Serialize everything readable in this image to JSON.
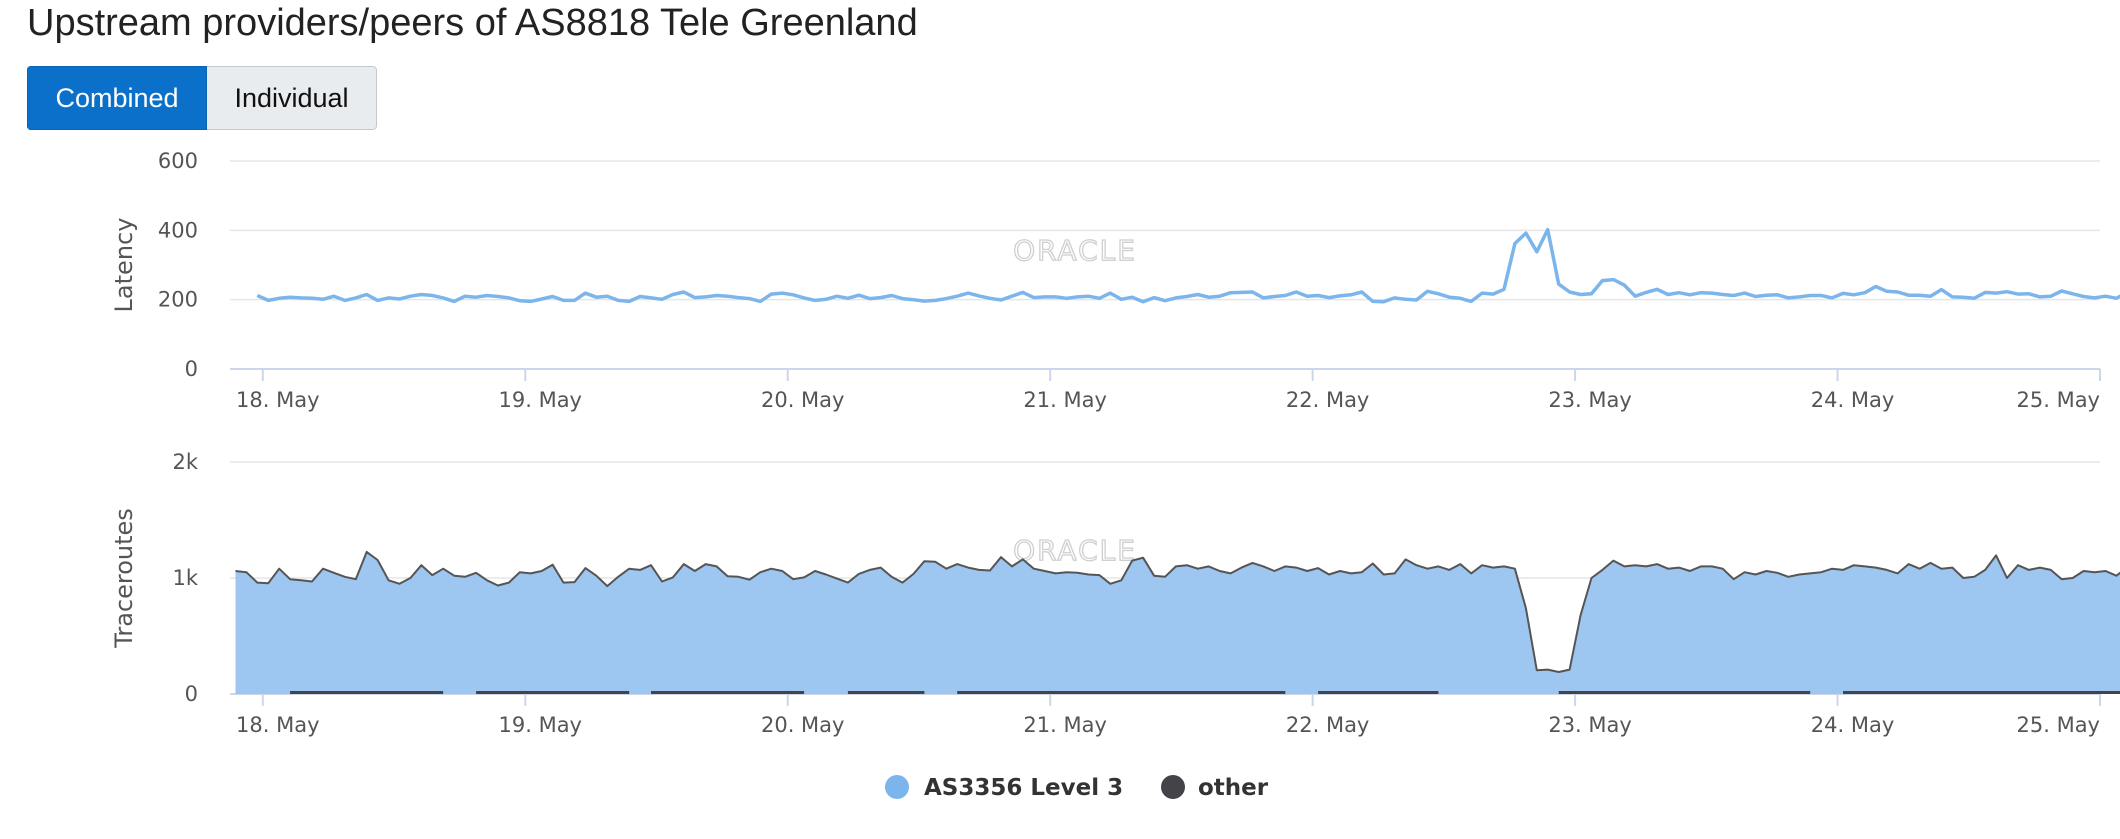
{
  "page": {
    "title": "Upstream providers/peers of AS8818 Tele Greenland"
  },
  "toggle": {
    "combined_label": "Combined",
    "individual_label": "Individual",
    "selected": "Combined"
  },
  "watermark": "ORACLE",
  "colors": {
    "provider": "#7cb5ec",
    "provider_area": "#9dc6f0",
    "other": "#434348",
    "grid": "#e6e6e6",
    "axis": "#ccd6eb"
  },
  "legend": [
    {
      "name": "AS3356 Level 3",
      "color": "#7cb5ec"
    },
    {
      "name": "other",
      "color": "#434348"
    }
  ],
  "chart_data": [
    {
      "type": "line",
      "ylabel": "Latency",
      "ylim": [
        0,
        600
      ],
      "yticks": [
        "0",
        "200",
        "400",
        "600"
      ],
      "xlim": [
        "2024-05-17T21:00",
        "2024-05-25T00:00"
      ],
      "xticks": [
        "18. May",
        "19. May",
        "20. May",
        "21. May",
        "22. May",
        "23. May",
        "24. May",
        "25. May"
      ],
      "series": [
        {
          "name": "AS3356 Level 3",
          "color": "#7cb5ec",
          "x_start": "2024-05-17T23:30",
          "x_step_hours": 1,
          "values": [
            212,
            198,
            204,
            207,
            205,
            204,
            201,
            210,
            198,
            205,
            215,
            198,
            205,
            202,
            210,
            215,
            212,
            205,
            195,
            210,
            207,
            212,
            209,
            205,
            197,
            195,
            202,
            209,
            198,
            198,
            219,
            207,
            210,
            198,
            195,
            209,
            205,
            201,
            215,
            222,
            206,
            208,
            212,
            210,
            206,
            203,
            195,
            216,
            219,
            214,
            205,
            198,
            201,
            210,
            204,
            213,
            203,
            206,
            212,
            203,
            200,
            196,
            198,
            203,
            210,
            219,
            211,
            204,
            199,
            210,
            221,
            206,
            208,
            208,
            204,
            208,
            210,
            204,
            219,
            201,
            207,
            194,
            206,
            197,
            205,
            209,
            215,
            207,
            210,
            220,
            221,
            222,
            205,
            209,
            212,
            222,
            210,
            212,
            206,
            211,
            214,
            222,
            195,
            194,
            205,
            201,
            199,
            224,
            217,
            207,
            204,
            195,
            219,
            216,
            230,
            362,
            392,
            338,
            402,
            245,
            222,
            215,
            217,
            255,
            258,
            242,
            210,
            221,
            230,
            215,
            220,
            214,
            220,
            219,
            215,
            212,
            219,
            209,
            213,
            214,
            205,
            208,
            212,
            212,
            205,
            218,
            214,
            220,
            238,
            224,
            222,
            213,
            213,
            210,
            229,
            208,
            207,
            204,
            221,
            219,
            223,
            216,
            217,
            208,
            210,
            225,
            217,
            209,
            205,
            210,
            204,
            221,
            230,
            227,
            209
          ]
        }
      ]
    },
    {
      "type": "area",
      "ylabel": "Traceroutes",
      "ylim": [
        0,
        2000
      ],
      "yticks": [
        "0",
        "1k",
        "2k"
      ],
      "xlim": [
        "2024-05-17T21:00",
        "2024-05-25T00:00"
      ],
      "xticks": [
        "18. May",
        "19. May",
        "20. May",
        "21. May",
        "22. May",
        "23. May",
        "24. May",
        "25. May"
      ],
      "series": [
        {
          "name": "AS3356 Level 3",
          "color": "#7cb5ec",
          "x_start": "2024-05-17T21:30",
          "x_step_hours": 1,
          "values": [
            1060,
            1050,
            960,
            955,
            1080,
            990,
            980,
            970,
            1080,
            1045,
            1010,
            990,
            1225,
            1155,
            980,
            950,
            1000,
            1110,
            1025,
            1080,
            1020,
            1010,
            1045,
            980,
            935,
            960,
            1050,
            1040,
            1060,
            1115,
            960,
            965,
            1085,
            1020,
            930,
            1010,
            1080,
            1070,
            1110,
            970,
            1005,
            1120,
            1060,
            1120,
            1100,
            1015,
            1010,
            985,
            1050,
            1080,
            1060,
            990,
            1005,
            1060,
            1030,
            995,
            960,
            1035,
            1070,
            1090,
            1010,
            960,
            1035,
            1145,
            1140,
            1080,
            1120,
            1090,
            1070,
            1065,
            1180,
            1100,
            1160,
            1080,
            1060,
            1040,
            1050,
            1045,
            1030,
            1025,
            950,
            980,
            1150,
            1175,
            1020,
            1010,
            1100,
            1110,
            1080,
            1100,
            1060,
            1040,
            1090,
            1130,
            1100,
            1060,
            1100,
            1090,
            1060,
            1085,
            1030,
            1060,
            1040,
            1050,
            1125,
            1030,
            1040,
            1160,
            1110,
            1080,
            1100,
            1070,
            1120,
            1040,
            1110,
            1090,
            1100,
            1080,
            740,
            205,
            210,
            190,
            210,
            680,
            1000,
            1070,
            1150,
            1100,
            1110,
            1100,
            1120,
            1080,
            1090,
            1060,
            1100,
            1100,
            1080,
            990,
            1050,
            1030,
            1060,
            1045,
            1010,
            1030,
            1040,
            1050,
            1080,
            1070,
            1110,
            1100,
            1090,
            1070,
            1040,
            1120,
            1080,
            1130,
            1080,
            1090,
            1000,
            1010,
            1070,
            1195,
            1000,
            1110,
            1070,
            1090,
            1070,
            990,
            1000,
            1060,
            1050,
            1060,
            1020,
            1090,
            1000,
            1090,
            1140,
            990,
            1035,
            1130,
            1110,
            1125,
            1045,
            1050,
            1040
          ]
        },
        {
          "name": "other",
          "color": "#434348",
          "x_start": "2024-05-17T21:30",
          "x_step_hours": 1,
          "values": [
            0,
            0,
            0,
            0,
            0,
            18,
            18,
            18,
            18,
            18,
            18,
            18,
            18,
            18,
            18,
            18,
            18,
            18,
            18,
            18,
            0,
            0,
            18,
            18,
            18,
            18,
            18,
            18,
            18,
            18,
            18,
            18,
            18,
            18,
            18,
            18,
            18,
            0,
            18,
            18,
            18,
            18,
            18,
            18,
            18,
            18,
            18,
            18,
            18,
            18,
            18,
            18,
            18,
            0,
            0,
            0,
            18,
            18,
            18,
            18,
            18,
            18,
            18,
            18,
            0,
            0,
            18,
            18,
            18,
            18,
            18,
            18,
            18,
            18,
            18,
            18,
            18,
            18,
            18,
            18,
            18,
            18,
            18,
            18,
            18,
            18,
            18,
            18,
            18,
            18,
            18,
            18,
            18,
            18,
            18,
            18,
            18,
            0,
            0,
            18,
            18,
            18,
            18,
            18,
            18,
            18,
            18,
            18,
            18,
            18,
            18,
            0,
            0,
            0,
            0,
            0,
            0,
            0,
            0,
            0,
            0,
            18,
            18,
            18,
            18,
            18,
            18,
            18,
            18,
            18,
            18,
            18,
            18,
            18,
            18,
            18,
            18,
            18,
            18,
            18,
            18,
            18,
            18,
            18,
            18,
            0,
            0,
            18,
            18,
            18,
            18,
            18,
            18,
            18,
            18,
            18,
            18,
            18,
            18,
            18,
            18,
            18,
            18,
            18,
            18,
            18,
            18,
            18,
            18,
            18,
            18,
            18,
            18,
            18,
            18,
            18,
            18,
            18,
            0,
            0,
            0,
            18,
            18,
            18,
            18,
            18,
            18,
            18,
            18,
            18,
            18,
            18,
            18,
            18,
            18,
            0,
            0,
            18,
            18
          ]
        }
      ]
    }
  ]
}
